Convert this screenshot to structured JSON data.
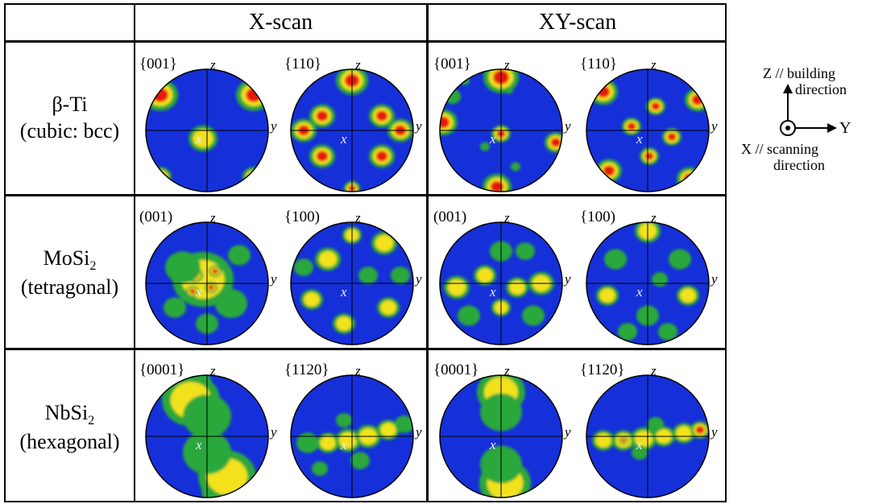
{
  "columns": [
    "X-scan",
    "XY-scan"
  ],
  "rows": [
    {
      "name": "β-Ti",
      "crystal": "(cubic: bcc)",
      "figures": [
        {
          "label": "{001}",
          "pattern": "ti001x"
        },
        {
          "label": "{110}",
          "pattern": "ti110x"
        },
        {
          "label": "{001}",
          "pattern": "ti001xy"
        },
        {
          "label": "{110}",
          "pattern": "ti110xy"
        }
      ]
    },
    {
      "name_main": "MoSi",
      "name_sub": "2",
      "crystal": "(tetragonal)",
      "figures": [
        {
          "label": "(001)",
          "pattern": "mo001x"
        },
        {
          "label": "{100)",
          "pattern": "mo100x"
        },
        {
          "label": "(001)",
          "pattern": "mo001xy"
        },
        {
          "label": "{100)",
          "pattern": "mo100xy"
        }
      ]
    },
    {
      "name_main": "NbSi",
      "name_sub": "2",
      "crystal": "(hexagonal)",
      "figures": [
        {
          "label": "{0001}",
          "pattern": "nb0001x"
        },
        {
          "label": "{1120}",
          "pattern": "nb1120x"
        },
        {
          "label": "{0001}",
          "pattern": "nb0001xy"
        },
        {
          "label": "{1120}",
          "pattern": "nb1120xy"
        }
      ]
    }
  ],
  "axes": {
    "z": "z",
    "y": "y",
    "x": "x"
  },
  "legend": {
    "z_line1": "Z // building",
    "z_line2": "direction",
    "y_label": "Y",
    "x_line1": "X // scanning",
    "x_line2": "direction"
  },
  "colors": {
    "background": "#1530d8",
    "low": "#2aa83a",
    "mid": "#f2e21a",
    "high": "#e8150e"
  }
}
